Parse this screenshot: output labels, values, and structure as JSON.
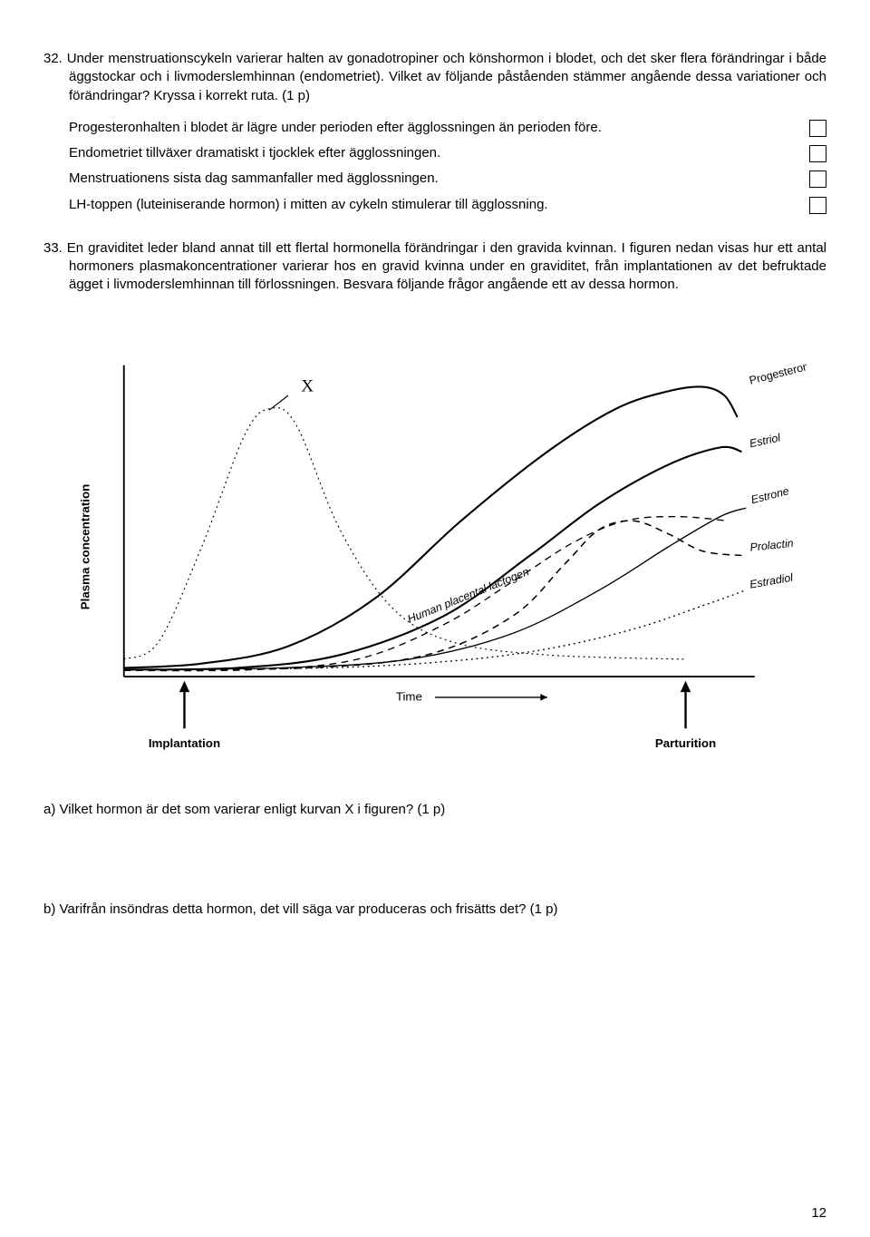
{
  "q32": {
    "number": "32.",
    "text": "Under menstruationscykeln varierar halten av gonadotropiner och könshormon i blodet, och det sker flera förändringar i både äggstockar och i livmoderslemhinnan (endometriet). Vilket av följande påståenden stämmer angående dessa variationer och förändringar? Kryssa i korrekt ruta. (1 p)",
    "statements": [
      "Progesteronhalten i blodet är lägre under perioden efter ägglossningen än perioden före.",
      "Endometriet tillväxer dramatiskt i tjocklek efter ägglossningen.",
      "Menstruationens sista dag sammanfaller med ägglossningen.",
      "LH-toppen (luteiniserande hormon) i mitten av cykeln stimulerar till ägglossning."
    ]
  },
  "q33": {
    "number": "33.",
    "text": "En graviditet leder bland annat till ett flertal hormonella förändringar i den gravida kvinnan. I figuren nedan visas hur ett antal hormoners plasmakoncentrationer varierar hos en gravid kvinna under en graviditet, från implantationen av det befruktade ägget i livmoderslemhinnan till förlossningen. Besvara följande frågor angående ett av dessa hormon.",
    "sub_a": "a) Vilket hormon är det som varierar enligt kurvan X i figuren? (1 p)",
    "sub_b": "b) Varifrån insöndras detta hormon, det vill säga var produceras och frisätts det? (1 p)"
  },
  "figure": {
    "y_axis_label": "Plasma concentration",
    "x_axis_label": "Time",
    "marker_left": "Implantation",
    "marker_right": "Parturition",
    "curve_x_label": "X",
    "curve_labels": [
      "Progesterone",
      "Estriol",
      "Estrone",
      "Prolactin",
      "Estradiol"
    ],
    "hpl_label": "Human placental lactogen",
    "colors": {
      "stroke": "#000000",
      "background": "#ffffff"
    },
    "curves": {
      "X": {
        "style": "dotted",
        "width": 1.2,
        "pts": [
          [
            70,
            380
          ],
          [
            110,
            360
          ],
          [
            160,
            250
          ],
          [
            210,
            120
          ],
          [
            240,
            90
          ],
          [
            270,
            110
          ],
          [
            320,
            230
          ],
          [
            380,
            320
          ],
          [
            450,
            360
          ],
          [
            560,
            375
          ],
          [
            720,
            380
          ]
        ]
      },
      "progesterone": {
        "style": "solid",
        "width": 2.2,
        "pts": [
          [
            70,
            390
          ],
          [
            160,
            385
          ],
          [
            260,
            365
          ],
          [
            360,
            310
          ],
          [
            460,
            220
          ],
          [
            560,
            140
          ],
          [
            640,
            90
          ],
          [
            700,
            70
          ],
          [
            740,
            65
          ],
          [
            765,
            75
          ],
          [
            780,
            100
          ]
        ]
      },
      "estriol": {
        "style": "solid",
        "width": 2.2,
        "pts": [
          [
            70,
            392
          ],
          [
            200,
            390
          ],
          [
            320,
            375
          ],
          [
            440,
            330
          ],
          [
            540,
            260
          ],
          [
            620,
            200
          ],
          [
            700,
            155
          ],
          [
            760,
            135
          ],
          [
            785,
            140
          ]
        ]
      },
      "estrone": {
        "style": "solid",
        "width": 1.4,
        "pts": [
          [
            70,
            392
          ],
          [
            250,
            390
          ],
          [
            400,
            380
          ],
          [
            520,
            350
          ],
          [
            620,
            300
          ],
          [
            700,
            250
          ],
          [
            760,
            215
          ],
          [
            790,
            205
          ]
        ]
      },
      "prolactin": {
        "style": "dashed",
        "width": 1.6,
        "pts": [
          [
            70,
            392
          ],
          [
            280,
            390
          ],
          [
            420,
            375
          ],
          [
            520,
            330
          ],
          [
            580,
            270
          ],
          [
            620,
            230
          ],
          [
            660,
            220
          ],
          [
            700,
            235
          ],
          [
            740,
            255
          ],
          [
            785,
            260
          ]
        ]
      },
      "estradiol": {
        "style": "dotted",
        "width": 1.4,
        "pts": [
          [
            70,
            392
          ],
          [
            300,
            390
          ],
          [
            450,
            382
          ],
          [
            560,
            368
          ],
          [
            660,
            345
          ],
          [
            740,
            318
          ],
          [
            790,
            300
          ]
        ]
      },
      "hpl": {
        "style": "dashed",
        "width": 1.4,
        "pts": [
          [
            70,
            393
          ],
          [
            220,
            392
          ],
          [
            340,
            380
          ],
          [
            440,
            340
          ],
          [
            520,
            290
          ],
          [
            590,
            245
          ],
          [
            650,
            220
          ],
          [
            710,
            215
          ],
          [
            770,
            220
          ]
        ]
      }
    }
  },
  "page_number": "12"
}
